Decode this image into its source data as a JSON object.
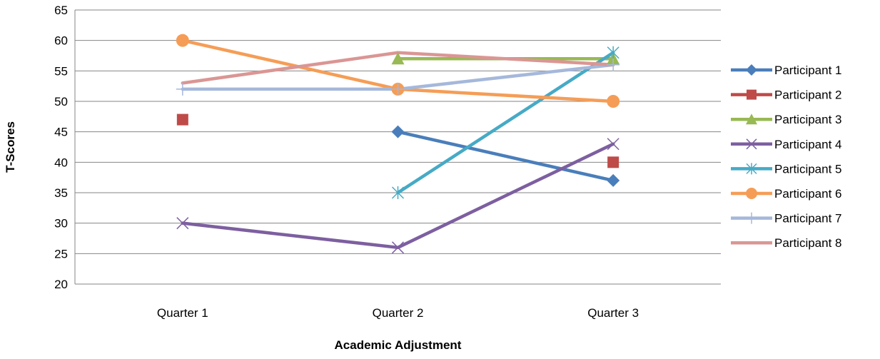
{
  "chart_data": {
    "type": "line",
    "title": "",
    "xlabel": "Academic Adjustment",
    "ylabel": "T-Scores",
    "categories": [
      "Quarter 1",
      "Quarter 2",
      "Quarter 3"
    ],
    "ylim": [
      20,
      65
    ],
    "yticks": [
      20,
      25,
      30,
      35,
      40,
      45,
      50,
      55,
      60,
      65
    ],
    "grid": true,
    "legend_position": "right",
    "series": [
      {
        "name": "Participant 1",
        "color": "#4A7EBB",
        "marker": "diamond",
        "values": [
          null,
          45,
          37
        ]
      },
      {
        "name": "Participant 2",
        "color": "#BE4B48",
        "marker": "square",
        "values": [
          47,
          null,
          40
        ]
      },
      {
        "name": "Participant 3",
        "color": "#98B954",
        "marker": "triangle",
        "values": [
          null,
          57,
          57
        ]
      },
      {
        "name": "Participant 4",
        "color": "#7D5FA0",
        "marker": "x",
        "values": [
          30,
          26,
          43
        ]
      },
      {
        "name": "Participant 5",
        "color": "#46AAC5",
        "marker": "star",
        "values": [
          null,
          35,
          58
        ]
      },
      {
        "name": "Participant 6",
        "color": "#F59D56",
        "marker": "circle",
        "values": [
          60,
          52,
          50
        ]
      },
      {
        "name": "Participant 7",
        "color": "#A5B8DB",
        "marker": "plus",
        "values": [
          52,
          52,
          56
        ]
      },
      {
        "name": "Participant 8",
        "color": "#DA9694",
        "marker": "none",
        "values": [
          53,
          58,
          56
        ]
      }
    ]
  }
}
